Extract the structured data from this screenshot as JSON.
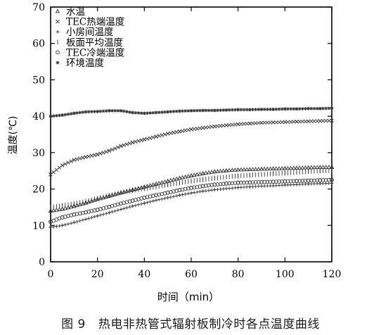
{
  "figure": {
    "number": "图 9",
    "caption": "热电非热管式辐射板制冷时各点温度曲线"
  },
  "chart_data": {
    "type": "scatter",
    "xlabel": "时间（min）",
    "ylabel": "温度(℃)",
    "xlim": [
      0,
      120
    ],
    "ylim": [
      0,
      70
    ],
    "xticks": [
      0,
      20,
      40,
      60,
      80,
      100,
      120
    ],
    "yticks": [
      0,
      10,
      20,
      30,
      40,
      50,
      60,
      70
    ],
    "grid": false,
    "legend_position": "top-left",
    "series": [
      {
        "name": "水温",
        "marker": "triangle",
        "x": [
          0,
          5,
          10,
          15,
          20,
          25,
          30,
          35,
          40,
          45,
          50,
          55,
          60,
          65,
          70,
          75,
          80,
          85,
          90,
          95,
          100,
          105,
          110,
          115,
          120
        ],
        "y": [
          14,
          14.5,
          15.3,
          16.2,
          17.2,
          18.1,
          19,
          19.8,
          20.6,
          21.4,
          22.2,
          23,
          23.7,
          24.3,
          24.8,
          25.1,
          25.3,
          25.4,
          25.5,
          25.6,
          25.7,
          25.8,
          25.9,
          26,
          26
        ]
      },
      {
        "name": "TEC热端温度",
        "marker": "x",
        "x": [
          0,
          5,
          10,
          15,
          20,
          25,
          30,
          35,
          40,
          45,
          50,
          55,
          60,
          65,
          70,
          75,
          80,
          85,
          90,
          95,
          100,
          105,
          110,
          115,
          120
        ],
        "y": [
          24,
          26.5,
          28,
          28.8,
          29.5,
          30.5,
          31.8,
          32.8,
          33.6,
          34.4,
          35.2,
          35.8,
          36.4,
          36.8,
          37.2,
          37.5,
          37.8,
          38,
          38.2,
          38.3,
          38.4,
          38.5,
          38.6,
          38.7,
          38.8
        ]
      },
      {
        "name": "小房间温度",
        "marker": "plus",
        "x": [
          0,
          5,
          10,
          15,
          20,
          25,
          30,
          35,
          40,
          45,
          50,
          55,
          60,
          65,
          70,
          75,
          80,
          85,
          90,
          95,
          100,
          105,
          110,
          115,
          120
        ],
        "y": [
          9.5,
          10,
          10.8,
          11.7,
          12.6,
          13.5,
          14.4,
          15.3,
          16.1,
          16.9,
          17.6,
          18.3,
          18.9,
          19.4,
          19.8,
          20.1,
          20.4,
          20.6,
          20.8,
          20.9,
          21.1,
          21.2,
          21.4,
          21.5,
          21.6
        ]
      },
      {
        "name": "板面平均温度",
        "marker": "bar",
        "x": [
          0,
          5,
          10,
          15,
          20,
          25,
          30,
          35,
          40,
          45,
          50,
          55,
          60,
          65,
          70,
          75,
          80,
          85,
          90,
          95,
          100,
          105,
          110,
          115,
          120
        ],
        "y": [
          15,
          15.4,
          15.9,
          16.6,
          17.4,
          18.2,
          19,
          19.6,
          20.1,
          20.6,
          21.2,
          21.7,
          22.2,
          22.6,
          23,
          23.3,
          23.6,
          23.8,
          24,
          24.2,
          24.4,
          24.6,
          24.8,
          25,
          25.1
        ]
      },
      {
        "name": "TEC冷端温度",
        "marker": "circle",
        "x": [
          0,
          5,
          10,
          15,
          20,
          25,
          30,
          35,
          40,
          45,
          50,
          55,
          60,
          65,
          70,
          75,
          80,
          85,
          90,
          95,
          100,
          105,
          110,
          115,
          120
        ],
        "y": [
          11,
          12.2,
          13,
          13.6,
          14.3,
          15.1,
          16,
          16.8,
          17.6,
          18.3,
          19,
          19.7,
          20.3,
          20.8,
          21.2,
          21.5,
          21.7,
          21.8,
          21.9,
          22,
          22.1,
          22.2,
          22.3,
          22.4,
          22.5
        ]
      },
      {
        "name": "环境温度",
        "marker": "star",
        "x": [
          0,
          5,
          10,
          15,
          20,
          25,
          30,
          35,
          40,
          45,
          50,
          55,
          60,
          65,
          70,
          75,
          80,
          85,
          90,
          95,
          100,
          105,
          110,
          115,
          120
        ],
        "y": [
          40,
          40.3,
          40.8,
          41.2,
          41.3,
          41.5,
          41.5,
          41,
          40.8,
          41,
          41.2,
          41.4,
          41.5,
          41.6,
          41.6,
          41.7,
          41.8,
          41.8,
          41.9,
          41.9,
          42,
          42,
          42.1,
          42.1,
          42.2
        ]
      }
    ]
  }
}
